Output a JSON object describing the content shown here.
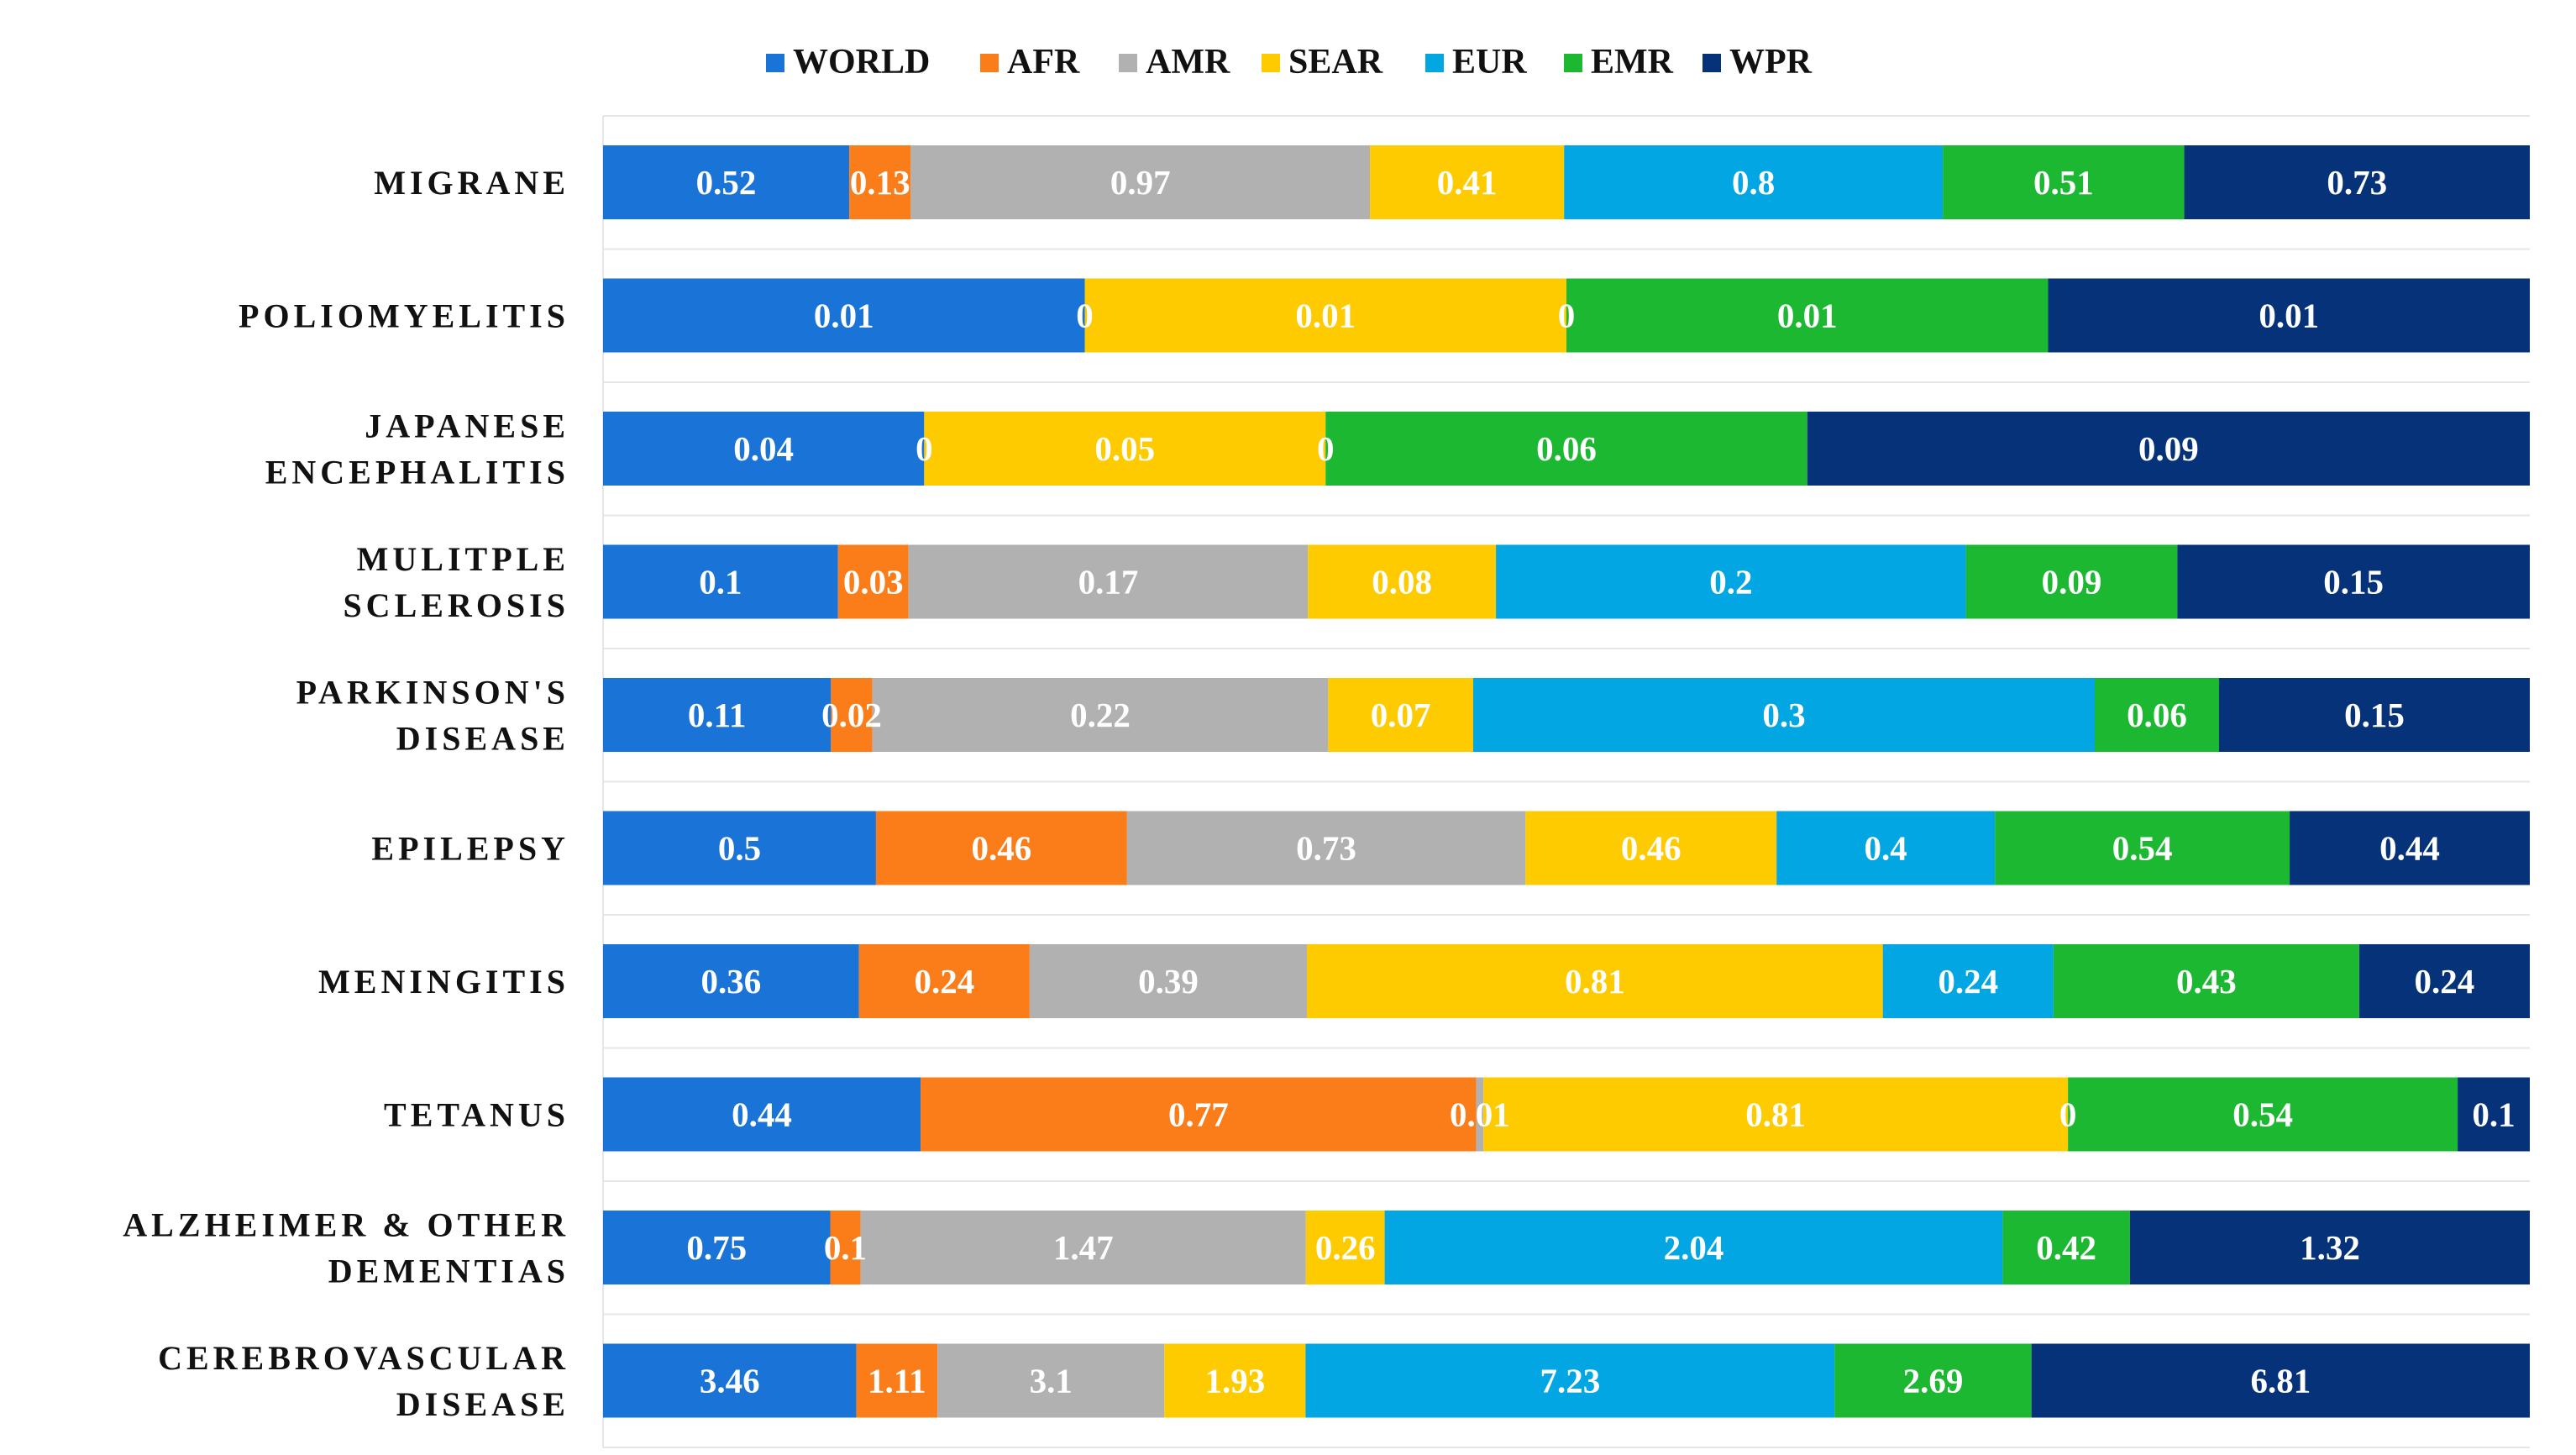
{
  "chart_data": {
    "type": "bar",
    "orientation": "horizontal",
    "stacked": "normalized",
    "title": "",
    "xlabel": "",
    "ylabel": "",
    "legend_position": "top",
    "grid": true,
    "categories": [
      [
        "MIGRANE"
      ],
      [
        "POLIOMYELITIS"
      ],
      [
        "JAPANESE",
        "ENCEPHALITIS"
      ],
      [
        "MULITPLE",
        "SCLEROSIS"
      ],
      [
        "PARKINSON'S",
        "DISEASE"
      ],
      [
        "EPILEPSY"
      ],
      [
        "MENINGITIS"
      ],
      [
        "TETANUS"
      ],
      [
        "ALZHEIMER & OTHER",
        "DEMENTIAS"
      ],
      [
        "CEREBROVASCULAR",
        "DISEASE"
      ]
    ],
    "series": [
      {
        "name": "WORLD",
        "color": "#1a73d6",
        "values": [
          0.52,
          0.01,
          0.04,
          0.1,
          0.11,
          0.5,
          0.36,
          0.44,
          0.75,
          3.46
        ],
        "labels": [
          "0.52",
          "0.01",
          "0.04",
          "0.1",
          "0.11",
          "0.5",
          "0.36",
          "0.44",
          "0.75",
          "3.46"
        ]
      },
      {
        "name": "AFR",
        "color": "#fa7d19",
        "values": [
          0.13,
          0,
          0,
          0.03,
          0.02,
          0.46,
          0.24,
          0.77,
          0.1,
          1.11
        ],
        "labels": [
          "0.13",
          "0",
          "0",
          "0.03",
          "0.02",
          "0.46",
          "0.24",
          "0.77",
          "0.1",
          "1.11"
        ]
      },
      {
        "name": "AMR",
        "color": "#b1b1b1",
        "values": [
          0.97,
          0,
          0,
          0.17,
          0.22,
          0.73,
          0.39,
          0.01,
          1.47,
          3.1
        ],
        "labels": [
          "0.97",
          "",
          "",
          "0.17",
          "0.22",
          "0.73",
          "0.39",
          "0.01",
          "1.47",
          "3.1"
        ]
      },
      {
        "name": "SEAR",
        "color": "#fecb00",
        "values": [
          0.41,
          0.01,
          0.05,
          0.08,
          0.07,
          0.46,
          0.81,
          0.81,
          0.26,
          1.93
        ],
        "labels": [
          "0.41",
          "0.01",
          "0.05",
          "0.08",
          "0.07",
          "0.46",
          "0.81",
          "0.81",
          "0.26",
          "1.93"
        ]
      },
      {
        "name": "EUR",
        "color": "#02a6e3",
        "values": [
          0.8,
          0,
          0,
          0.2,
          0.3,
          0.4,
          0.24,
          0,
          2.04,
          7.23
        ],
        "labels": [
          "0.8",
          "0",
          "0",
          "0.2",
          "0.3",
          "0.4",
          "0.24",
          "0",
          "2.04",
          "7.23"
        ]
      },
      {
        "name": "EMR",
        "color": "#1db832",
        "values": [
          0.51,
          0.01,
          0.06,
          0.09,
          0.06,
          0.54,
          0.43,
          0.54,
          0.42,
          2.69
        ],
        "labels": [
          "0.51",
          "0.01",
          "0.06",
          "0.09",
          "0.06",
          "0.54",
          "0.43",
          "0.54",
          "0.42",
          "2.69"
        ]
      },
      {
        "name": "WPR",
        "color": "#06327a",
        "values": [
          0.73,
          0.01,
          0.09,
          0.15,
          0.15,
          0.44,
          0.24,
          0.1,
          1.32,
          6.81
        ],
        "labels": [
          "0.73",
          "0.01",
          "0.09",
          "0.15",
          "0.15",
          "0.44",
          "0.24",
          "0.1",
          "1.32",
          "6.81"
        ]
      }
    ]
  }
}
